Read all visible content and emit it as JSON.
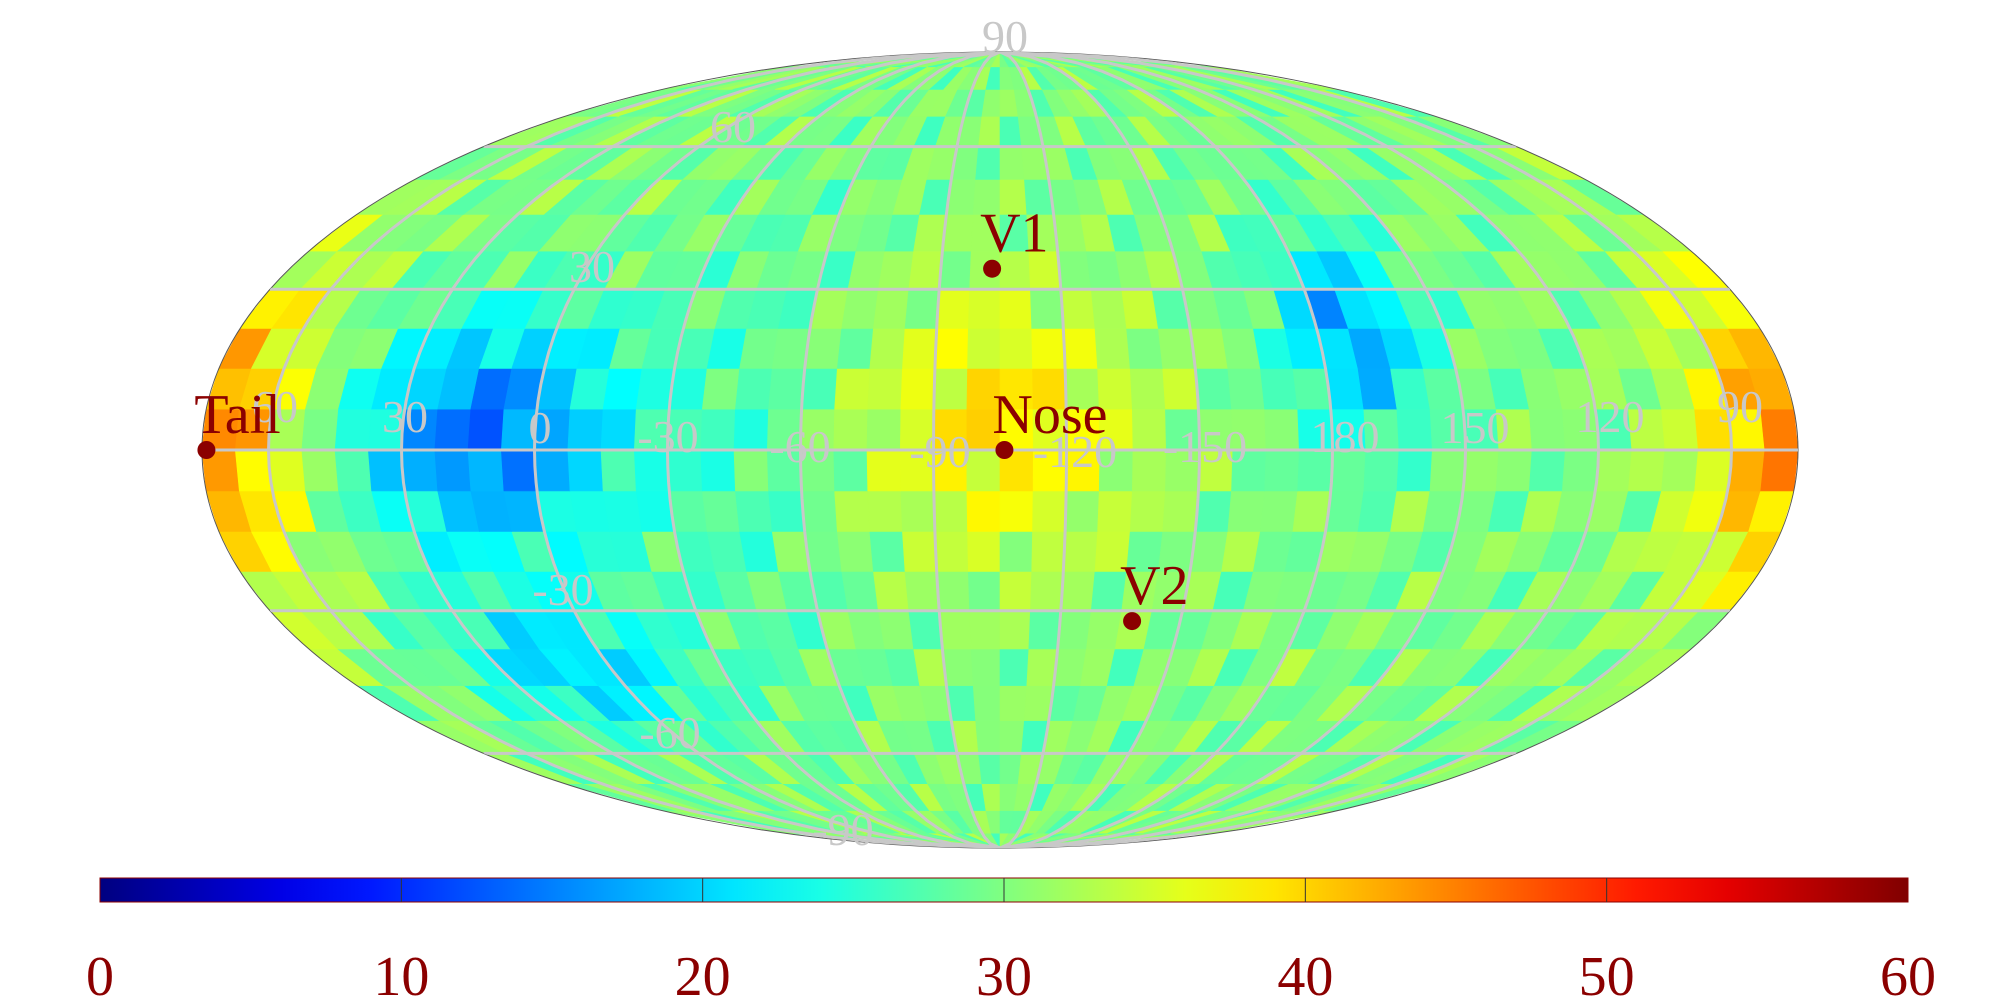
{
  "chart_data": {
    "type": "heatmap",
    "projection": "mollweide",
    "title": "",
    "xlabel": "",
    "ylabel": "",
    "grid": true,
    "colormap": "jet",
    "colorbar": {
      "min": 0,
      "max": 60,
      "ticks": [
        "0",
        "10",
        "20",
        "30",
        "40",
        "50",
        "60"
      ],
      "placement": "bottom"
    },
    "center_longitude": -105,
    "longitude_labels": [
      "60",
      "30",
      "0",
      "-30",
      "-60",
      "-90",
      "-120",
      "-150",
      "180",
      "150",
      "120",
      "90"
    ],
    "latitude_labels": [
      "90",
      "60",
      "30",
      "-30",
      "-60",
      "-90"
    ],
    "markers": [
      {
        "label": "V1",
        "lon": -103,
        "lat": 34
      },
      {
        "label": "Nose",
        "lon": -106,
        "lat": 0
      },
      {
        "label": "V2",
        "lon": -138,
        "lat": -32
      },
      {
        "label": "Tail",
        "lon": 74,
        "lat": 0
      }
    ],
    "regions": [
      {
        "lon": -105,
        "lat": 5,
        "value": 39,
        "spread_lon": 22,
        "spread_lat": 18
      },
      {
        "lon": 75,
        "lat": 3,
        "value": 45,
        "spread_lon": 16,
        "spread_lat": 22
      },
      {
        "lon": 12,
        "lat": 3,
        "value": 14,
        "spread_lon": 22,
        "spread_lat": 16
      },
      {
        "lon": 172,
        "lat": 22,
        "value": 17,
        "spread_lon": 12,
        "spread_lat": 14
      },
      {
        "lon": 10,
        "lat": -42,
        "value": 20,
        "spread_lon": 22,
        "spread_lat": 10
      },
      {
        "lon": -45,
        "lat": 0,
        "value": 27,
        "spread_lon": 18,
        "spread_lat": 35
      }
    ]
  },
  "colors": {
    "grid": "#c8c8c8",
    "marker": "#8b0000",
    "label": "#8b0000"
  }
}
